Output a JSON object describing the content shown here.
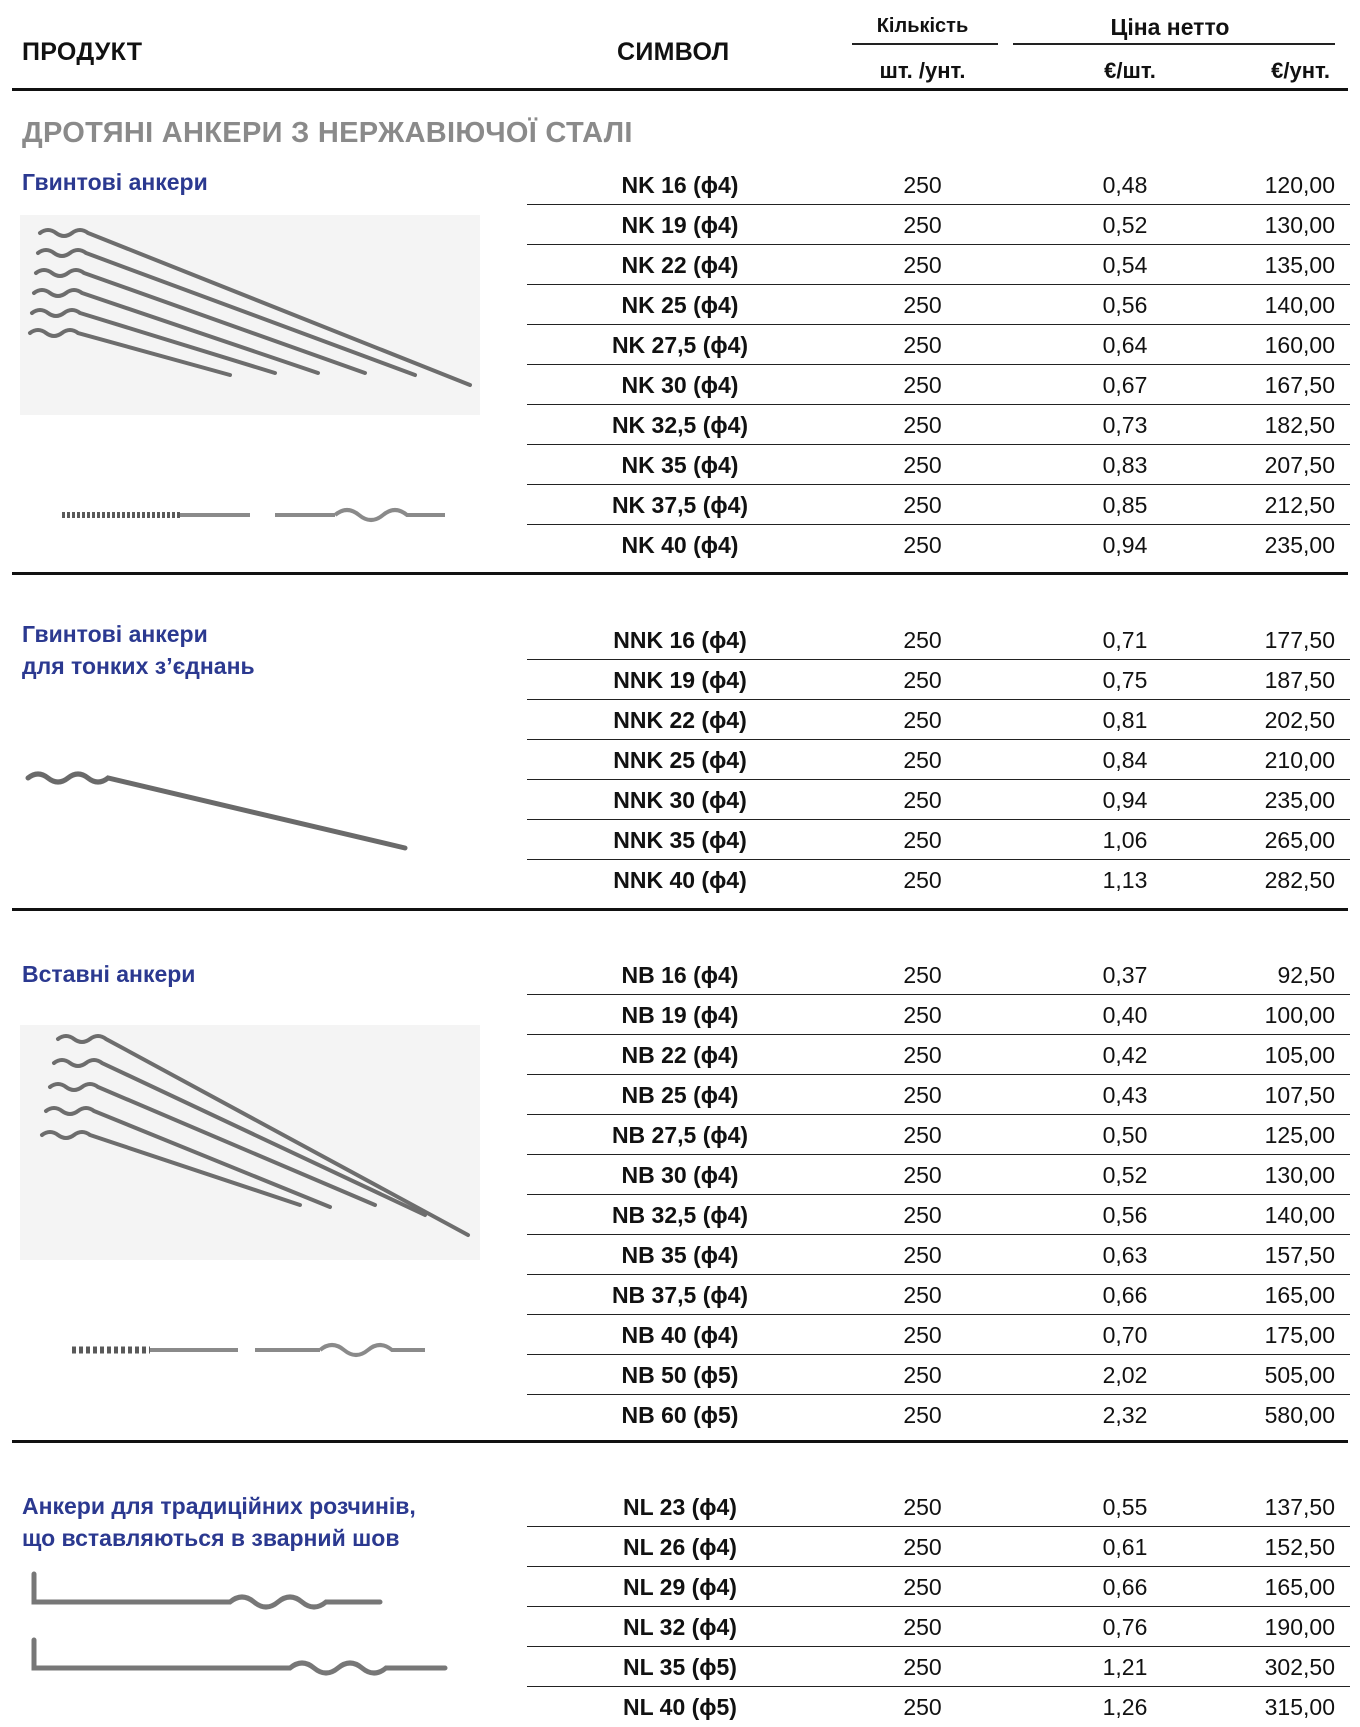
{
  "header": {
    "product": "ПРОДУКТ",
    "symbol": "СИМВОЛ",
    "quantity": "Кількість",
    "quantity_unit": "шт. /унт.",
    "net_price": "Ціна нетто",
    "price_per_piece": "€/шт.",
    "price_per_unit": "€/унт."
  },
  "main_title": "ДРОТЯНІ АНКЕРИ З НЕРЖАВІЮЧОЇ СТАЛІ",
  "colors": {
    "section_title": "#2b3990",
    "main_title": "#8a8a8a"
  },
  "sections": [
    {
      "title_lines": [
        "Гвинтові анкери"
      ],
      "icon": "screw-anchor-image",
      "rows": [
        {
          "symbol": "NK 16 (ϕ4)",
          "qty": "250",
          "price_piece": "0,48",
          "price_unit": "120,00"
        },
        {
          "symbol": "NK 19 (ϕ4)",
          "qty": "250",
          "price_piece": "0,52",
          "price_unit": "130,00"
        },
        {
          "symbol": "NK 22 (ϕ4)",
          "qty": "250",
          "price_piece": "0,54",
          "price_unit": "135,00"
        },
        {
          "symbol": "NK 25 (ϕ4)",
          "qty": "250",
          "price_piece": "0,56",
          "price_unit": "140,00"
        },
        {
          "symbol": "NK 27,5 (ϕ4)",
          "qty": "250",
          "price_piece": "0,64",
          "price_unit": "160,00"
        },
        {
          "symbol": "NK 30 (ϕ4)",
          "qty": "250",
          "price_piece": "0,67",
          "price_unit": "167,50"
        },
        {
          "symbol": "NK 32,5 (ϕ4)",
          "qty": "250",
          "price_piece": "0,73",
          "price_unit": "182,50"
        },
        {
          "symbol": "NK 35 (ϕ4)",
          "qty": "250",
          "price_piece": "0,83",
          "price_unit": "207,50"
        },
        {
          "symbol": "NK 37,5 (ϕ4)",
          "qty": "250",
          "price_piece": "0,85",
          "price_unit": "212,50"
        },
        {
          "symbol": "NK 40 (ϕ4)",
          "qty": "250",
          "price_piece": "0,94",
          "price_unit": "235,00"
        }
      ]
    },
    {
      "title_lines": [
        "Гвинтові анкери",
        "для тонких з’єднань"
      ],
      "icon": "thin-joint-anchor-image",
      "rows": [
        {
          "symbol": "NNK 16 (ϕ4)",
          "qty": "250",
          "price_piece": "0,71",
          "price_unit": "177,50"
        },
        {
          "symbol": "NNK 19 (ϕ4)",
          "qty": "250",
          "price_piece": "0,75",
          "price_unit": "187,50"
        },
        {
          "symbol": "NNK 22 (ϕ4)",
          "qty": "250",
          "price_piece": "0,81",
          "price_unit": "202,50"
        },
        {
          "symbol": "NNK 25 (ϕ4)",
          "qty": "250",
          "price_piece": "0,84",
          "price_unit": "210,00"
        },
        {
          "symbol": "NNK 30 (ϕ4)",
          "qty": "250",
          "price_piece": "0,94",
          "price_unit": "235,00"
        },
        {
          "symbol": "NNK 35 (ϕ4)",
          "qty": "250",
          "price_piece": "1,06",
          "price_unit": "265,00"
        },
        {
          "symbol": "NNK 40 (ϕ4)",
          "qty": "250",
          "price_piece": "1,13",
          "price_unit": "282,50"
        }
      ]
    },
    {
      "title_lines": [
        "Вставні анкери"
      ],
      "icon": "insert-anchor-image",
      "rows": [
        {
          "symbol": "NB 16 (ϕ4)",
          "qty": "250",
          "price_piece": "0,37",
          "price_unit": "92,50"
        },
        {
          "symbol": "NB 19 (ϕ4)",
          "qty": "250",
          "price_piece": "0,40",
          "price_unit": "100,00"
        },
        {
          "symbol": "NB 22 (ϕ4)",
          "qty": "250",
          "price_piece": "0,42",
          "price_unit": "105,00"
        },
        {
          "symbol": "NB 25 (ϕ4)",
          "qty": "250",
          "price_piece": "0,43",
          "price_unit": "107,50"
        },
        {
          "symbol": "NB 27,5 (ϕ4)",
          "qty": "250",
          "price_piece": "0,50",
          "price_unit": "125,00"
        },
        {
          "symbol": "NB 30 (ϕ4)",
          "qty": "250",
          "price_piece": "0,52",
          "price_unit": "130,00"
        },
        {
          "symbol": "NB 32,5 (ϕ4)",
          "qty": "250",
          "price_piece": "0,56",
          "price_unit": "140,00"
        },
        {
          "symbol": "NB 35 (ϕ4)",
          "qty": "250",
          "price_piece": "0,63",
          "price_unit": "157,50"
        },
        {
          "symbol": "NB 37,5 (ϕ4)",
          "qty": "250",
          "price_piece": "0,66",
          "price_unit": "165,00"
        },
        {
          "symbol": "NB 40 (ϕ4)",
          "qty": "250",
          "price_piece": "0,70",
          "price_unit": "175,00"
        },
        {
          "symbol": "NB 50 (ϕ5)",
          "qty": "250",
          "price_piece": "2,02",
          "price_unit": "505,00"
        },
        {
          "symbol": "NB 60 (ϕ5)",
          "qty": "250",
          "price_piece": "2,32",
          "price_unit": "580,00"
        }
      ]
    },
    {
      "title_lines": [
        "Анкери для традиційних розчинів,",
        "що вставляються в зварний шов"
      ],
      "icon": "l-shaped-anchor-image",
      "rows": [
        {
          "symbol": "NL 23 (ϕ4)",
          "qty": "250",
          "price_piece": "0,55",
          "price_unit": "137,50"
        },
        {
          "symbol": "NL 26 (ϕ4)",
          "qty": "250",
          "price_piece": "0,61",
          "price_unit": "152,50"
        },
        {
          "symbol": "NL 29 (ϕ4)",
          "qty": "250",
          "price_piece": "0,66",
          "price_unit": "165,00"
        },
        {
          "symbol": "NL 32 (ϕ4)",
          "qty": "250",
          "price_piece": "0,76",
          "price_unit": "190,00"
        },
        {
          "symbol": "NL 35 (ϕ5)",
          "qty": "250",
          "price_piece": "1,21",
          "price_unit": "302,50"
        },
        {
          "symbol": "NL 40 (ϕ5)",
          "qty": "250",
          "price_piece": "1,26",
          "price_unit": "315,00"
        }
      ]
    }
  ]
}
